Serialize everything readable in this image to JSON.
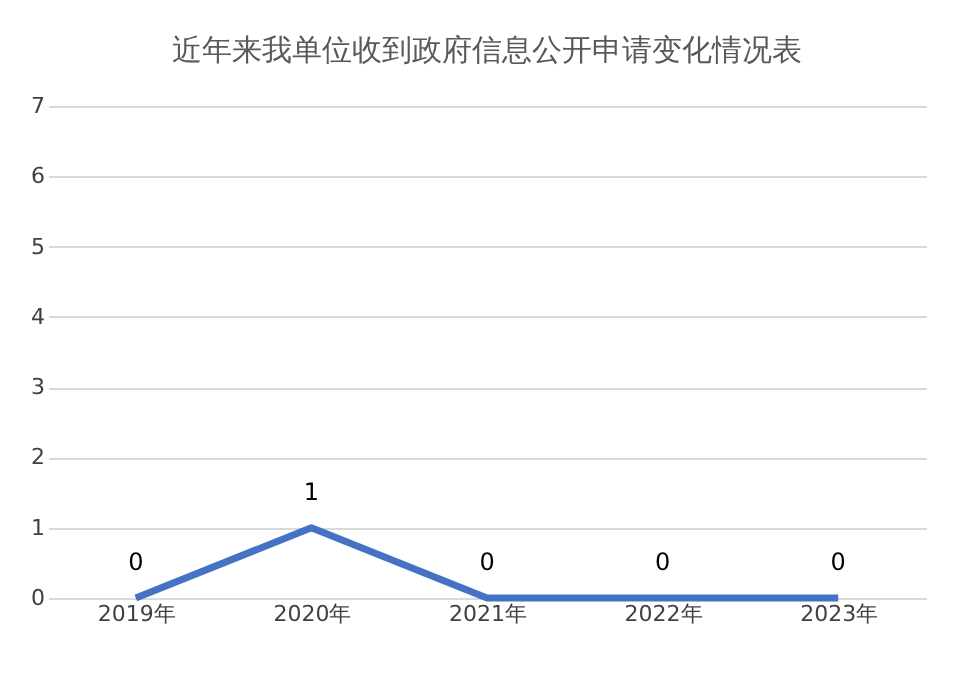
{
  "chart_data": {
    "type": "line",
    "title": "近年来我单位收到政府信息公开申请变化情况表",
    "categories": [
      "2019年",
      "2020年",
      "2021年",
      "2022年",
      "2023年"
    ],
    "series": [
      {
        "color": "#4472c4",
        "values": [
          0,
          1,
          0,
          0,
          0
        ]
      }
    ],
    "ylim": [
      0,
      7
    ],
    "yticks": [
      0,
      1,
      2,
      3,
      4,
      5,
      6,
      7
    ],
    "grid": "y",
    "data_labels": true,
    "marker": "none",
    "line_style": "solid",
    "legend": false
  }
}
